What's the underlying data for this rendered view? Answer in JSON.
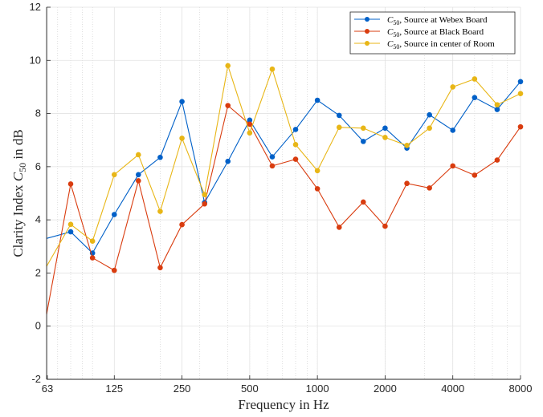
{
  "chart_data": {
    "type": "line",
    "xscale": "log2",
    "xlim": [
      62.5,
      8000
    ],
    "ylim": [
      -2,
      12
    ],
    "xlabel": "Frequency in Hz",
    "ylabel_prefix": "Clarity Index ",
    "ylabel_symbol": "C",
    "ylabel_sub": "50",
    "ylabel_suffix": " in dB",
    "xticks": [
      63,
      125,
      250,
      500,
      1000,
      2000,
      4000,
      8000
    ],
    "xtick_labels": [
      "63",
      "125",
      "250",
      "500",
      "1000",
      "2000",
      "4000",
      "8000"
    ],
    "yticks": [
      -2,
      0,
      2,
      4,
      6,
      8,
      10,
      12
    ],
    "ytick_labels": [
      "-2",
      "0",
      "2",
      "4",
      "6",
      "8",
      "10",
      "12"
    ],
    "grid": true,
    "legend_position": "top-right",
    "x": [
      62.5,
      80,
      100,
      125,
      160,
      200,
      250,
      315,
      400,
      500,
      630,
      800,
      1000,
      1250,
      1600,
      2000,
      2500,
      3150,
      4000,
      5000,
      6300,
      8000
    ],
    "series": [
      {
        "name_symbol": "C",
        "name_sub": "50",
        "name_rest": ", Source at Webex Board",
        "color": "#0060c8",
        "values": [
          3.3,
          3.55,
          2.75,
          4.2,
          5.7,
          6.35,
          8.45,
          4.65,
          6.2,
          7.75,
          6.37,
          7.4,
          8.5,
          7.93,
          6.95,
          7.45,
          6.7,
          7.95,
          7.37,
          8.6,
          8.15,
          9.2
        ]
      },
      {
        "name_symbol": "C",
        "name_sub": "50",
        "name_rest": ", Source at Black Board",
        "color": "#d93c0f",
        "values": [
          0.45,
          5.35,
          2.57,
          2.1,
          5.47,
          2.2,
          3.82,
          4.6,
          8.3,
          7.6,
          6.03,
          6.28,
          5.17,
          3.72,
          4.67,
          3.76,
          5.37,
          5.2,
          6.03,
          5.68,
          6.25,
          7.5
        ]
      },
      {
        "name_symbol": "C",
        "name_sub": "50",
        "name_rest": ", Source in center of Room",
        "color": "#e8b616",
        "values": [
          2.25,
          3.83,
          3.2,
          5.7,
          6.45,
          4.32,
          7.07,
          4.95,
          9.8,
          7.27,
          9.67,
          6.83,
          5.85,
          7.48,
          7.45,
          7.1,
          6.8,
          7.45,
          9.0,
          9.3,
          8.33,
          8.75
        ]
      }
    ]
  }
}
